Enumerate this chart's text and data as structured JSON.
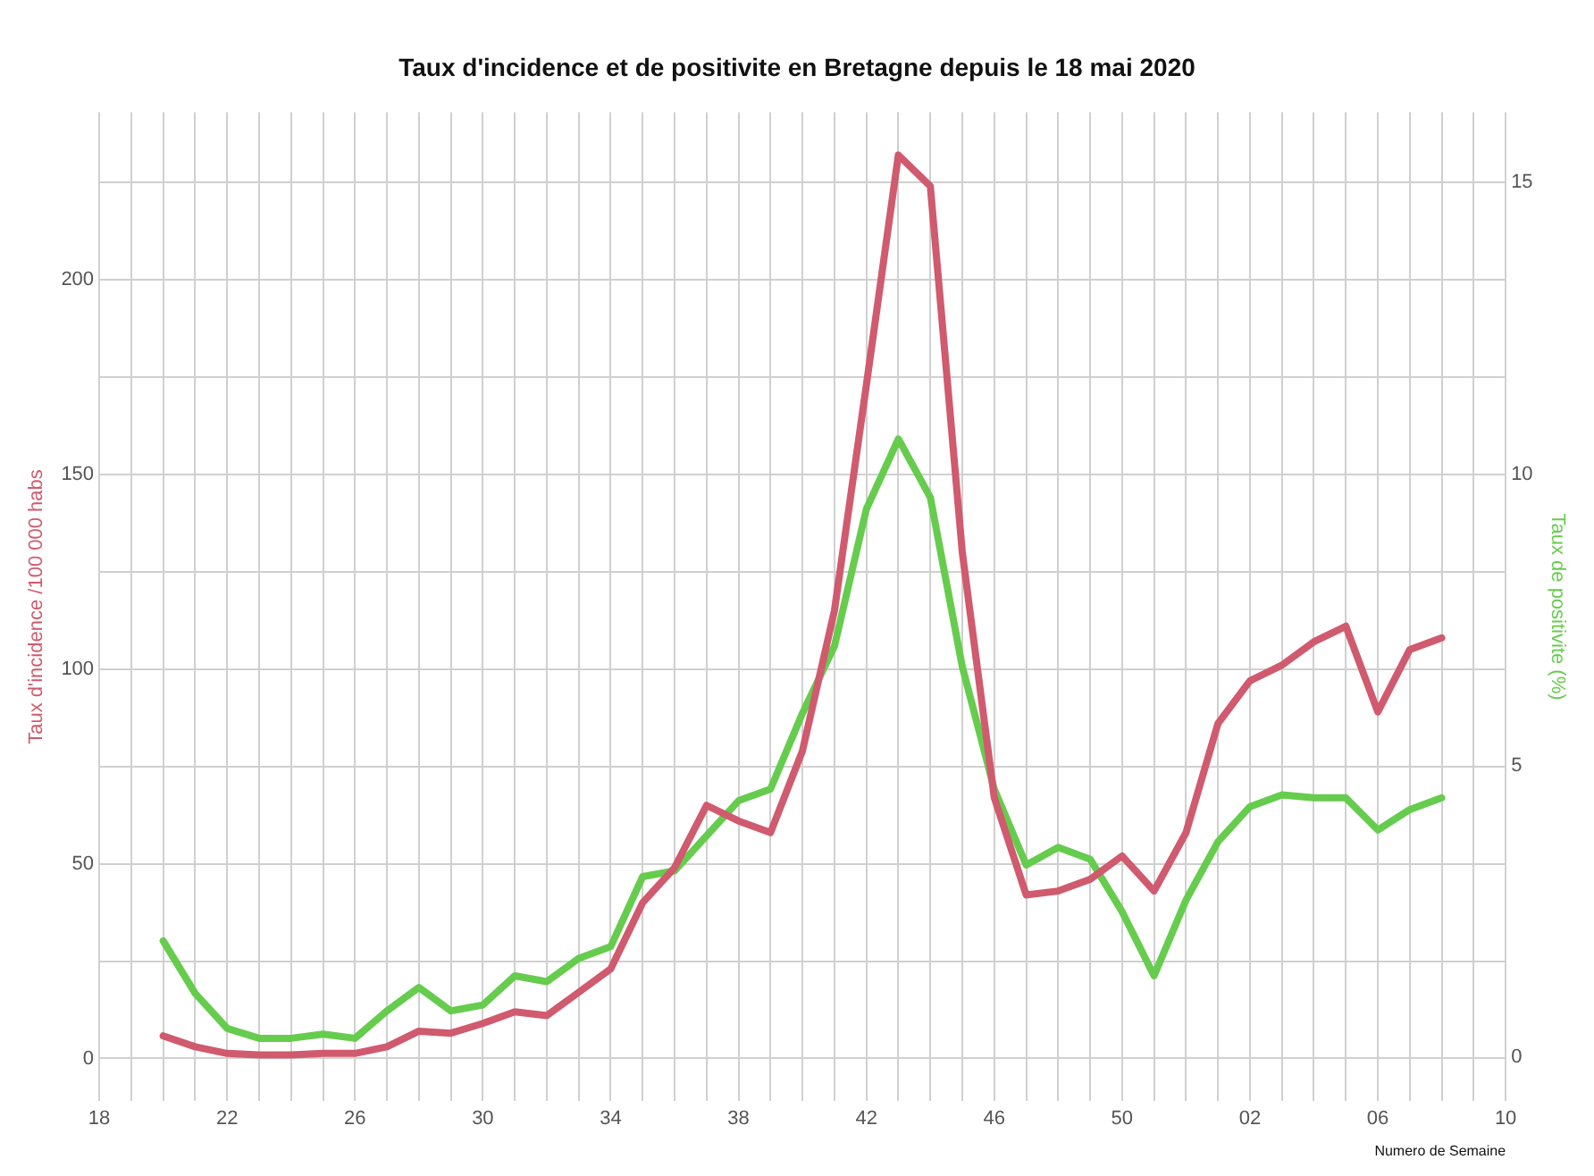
{
  "chart_data": {
    "type": "line",
    "title": "Taux d'incidence et de positivite en Bretagne depuis le 18 mai 2020",
    "xlabel": "Numero de Semaine",
    "ylabel": "Taux d'incidence /100 000 habs",
    "y2label": "Taux de positivite (%)",
    "categories": [
      "18",
      null,
      null,
      null,
      "22",
      null,
      null,
      null,
      "26",
      null,
      null,
      null,
      "30",
      null,
      null,
      null,
      "34",
      null,
      null,
      null,
      "38",
      null,
      null,
      null,
      "42",
      null,
      null,
      null,
      "46",
      null,
      null,
      null,
      "50",
      null,
      null,
      null,
      "02",
      null,
      null,
      null,
      "06",
      null,
      null,
      null,
      "10"
    ],
    "series": [
      {
        "color": "#d05a6e",
        "values": [
          null,
          null,
          5.8,
          3,
          1.3,
          0.9,
          0.9,
          1.3,
          1.3,
          3,
          7,
          6.5,
          9,
          12,
          11,
          17,
          23,
          40,
          49,
          65,
          61,
          58,
          79,
          115,
          173,
          232,
          224,
          130,
          67,
          42,
          43,
          46,
          52,
          43,
          58,
          86,
          97,
          101,
          107,
          111,
          89,
          105,
          108,
          null,
          null
        ]
      },
      {
        "color": "#66cc4d",
        "axis": "y2",
        "values": [
          null,
          null,
          2.0,
          1.1,
          0.5,
          0.33,
          0.33,
          0.4,
          0.33,
          0.8,
          1.2,
          0.8,
          0.9,
          1.4,
          1.3,
          1.7,
          1.9,
          3.1,
          3.2,
          3.8,
          4.4,
          4.6,
          5.9,
          7.05,
          9.4,
          10.6,
          9.6,
          6.7,
          4.6,
          3.3,
          3.6,
          3.4,
          2.5,
          1.4,
          2.7,
          3.7,
          4.3,
          4.5,
          4.45,
          4.45,
          3.9,
          4.25,
          4.45,
          null,
          null
        ]
      }
    ],
    "ylim": [
      -11,
      243
    ],
    "yticks": [
      0,
      {
        "value": 25,
        "label": null
      },
      50,
      {
        "value": 75,
        "label": null
      },
      100,
      {
        "value": 125,
        "label": null
      },
      150,
      {
        "value": 175,
        "label": null
      },
      200,
      {
        "value": 225,
        "label": null
      }
    ],
    "y2lim": [
      -0.75,
      16.2
    ],
    "y2ticks": [
      0,
      5,
      10,
      15
    ],
    "grid": true,
    "legend": false,
    "marker": "none",
    "line_style": "solid"
  }
}
